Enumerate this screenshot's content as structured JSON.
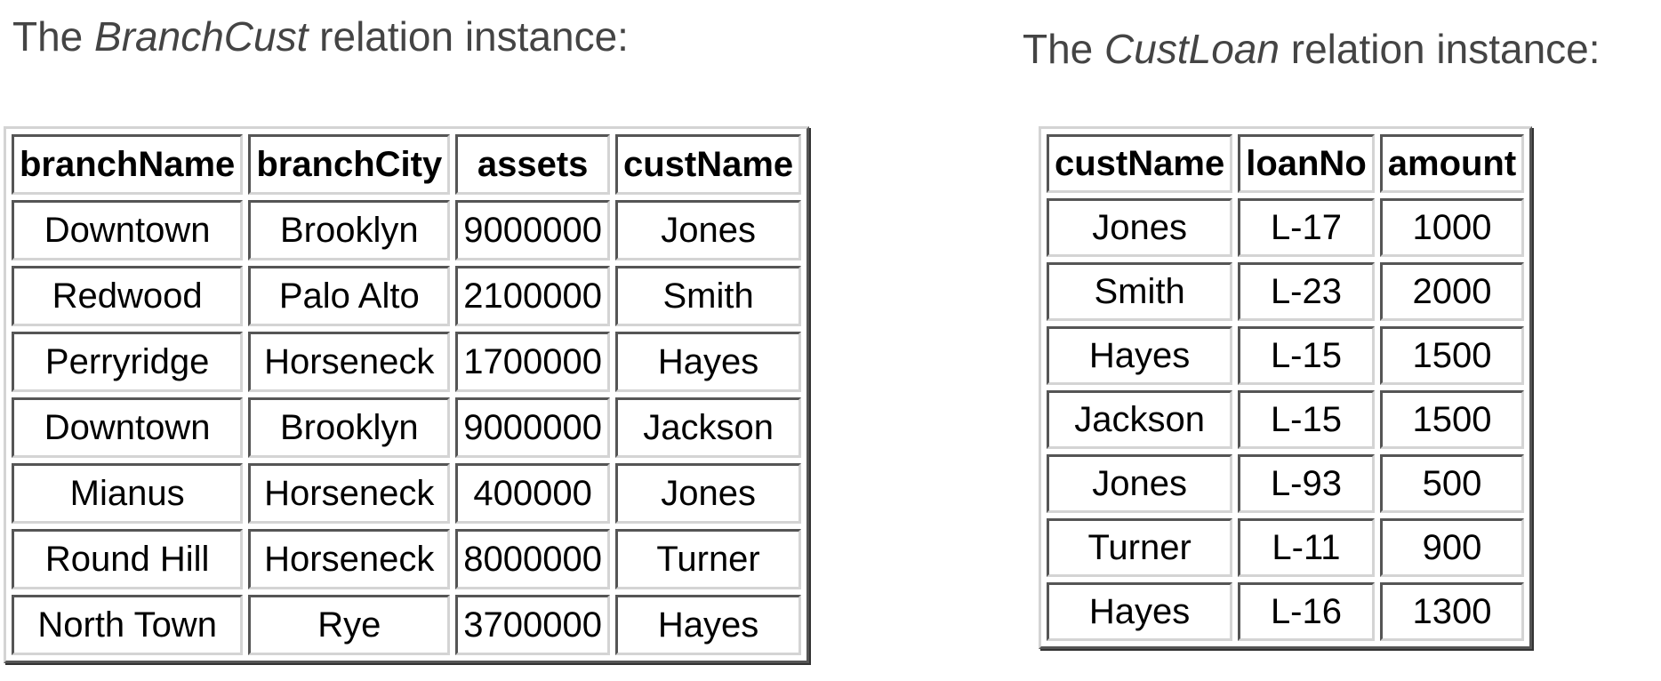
{
  "branch_cust": {
    "caption_prefix": "The ",
    "caption_name": "BranchCust",
    "caption_suffix": " relation instance:",
    "headers": [
      "branchName",
      "branchCity",
      "assets",
      "custName"
    ],
    "rows": [
      [
        "Downtown",
        "Brooklyn",
        "9000000",
        "Jones"
      ],
      [
        "Redwood",
        "Palo Alto",
        "2100000",
        "Smith"
      ],
      [
        "Perryridge",
        "Horseneck",
        "1700000",
        "Hayes"
      ],
      [
        "Downtown",
        "Brooklyn",
        "9000000",
        "Jackson"
      ],
      [
        "Mianus",
        "Horseneck",
        "400000",
        "Jones"
      ],
      [
        "Round Hill",
        "Horseneck",
        "8000000",
        "Turner"
      ],
      [
        "North Town",
        "Rye",
        "3700000",
        "Hayes"
      ]
    ]
  },
  "cust_loan": {
    "caption_prefix": "The ",
    "caption_name": "CustLoan",
    "caption_suffix": " relation instance:",
    "headers": [
      "custName",
      "loanNo",
      "amount"
    ],
    "rows": [
      [
        "Jones",
        "L-17",
        "1000"
      ],
      [
        "Smith",
        "L-23",
        "2000"
      ],
      [
        "Hayes",
        "L-15",
        "1500"
      ],
      [
        "Jackson",
        "L-15",
        "1500"
      ],
      [
        "Jones",
        "L-93",
        "500"
      ],
      [
        "Turner",
        "L-11",
        "900"
      ],
      [
        "Hayes",
        "L-16",
        "1300"
      ]
    ]
  }
}
